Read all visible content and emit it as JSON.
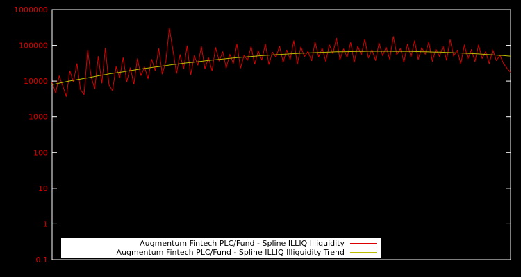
{
  "page": {
    "background_color": "#000000",
    "border_color": "#ffffff"
  },
  "chart_data": {
    "type": "line",
    "title": "",
    "xlabel": "",
    "ylabel": "",
    "x_axis": {
      "tick_labels_visible": false
    },
    "y_axis": {
      "scale": "log",
      "min": 0.1,
      "max": 1000000,
      "tick_labels": [
        "1000000",
        "100000",
        "10000",
        "1000",
        "100",
        "10",
        "1",
        "0.1"
      ],
      "tick_values": [
        1000000,
        100000,
        10000,
        1000,
        100,
        10,
        1,
        0.1
      ],
      "tick_color": "#dd0000"
    },
    "legend": {
      "position": "bottom-center",
      "background": "#ffffff"
    },
    "series": [
      {
        "name": "Augmentum Fintech PLC/Fund - Spline ILLIQ Illiquidity",
        "color": "#dd0000",
        "line_width": 1,
        "values": [
          9500,
          4600,
          14000,
          7400,
          3700,
          19200,
          9500,
          30700,
          5700,
          4200,
          74000,
          12900,
          6100,
          49000,
          8800,
          84000,
          7900,
          5400,
          25500,
          12300,
          45500,
          9500,
          23600,
          8200,
          42200,
          14200,
          24800,
          11700,
          40900,
          19800,
          81600,
          15800,
          35400,
          309000,
          72400,
          16400,
          55200,
          22100,
          97100,
          15000,
          51200,
          28000,
          93500,
          22100,
          45400,
          19400,
          87300,
          36500,
          66500,
          23400,
          56400,
          31000,
          109000,
          23100,
          51700,
          38400,
          92800,
          29900,
          70900,
          38700,
          110000,
          29300,
          64900,
          46600,
          94600,
          33900,
          74400,
          40600,
          135000,
          29800,
          90600,
          48800,
          67700,
          37300,
          125000,
          47400,
          83000,
          35400,
          104000,
          59000,
          159000,
          39800,
          80000,
          46800,
          121000,
          33700,
          94800,
          54400,
          150000,
          44500,
          75700,
          37800,
          117000,
          51500,
          89100,
          41100,
          178000,
          54700,
          82000,
          34100,
          109000,
          47500,
          135000,
          40200,
          86600,
          56300,
          125000,
          36000,
          78100,
          48500,
          96500,
          38200,
          145000,
          49900,
          74000,
          30500,
          103000,
          41800,
          76700,
          35000,
          104000,
          42700,
          67200,
          30400,
          76000,
          37500,
          52600,
          31100,
          22900,
          17500
        ]
      },
      {
        "name": "Augmentum Fintech PLC/Fund - Spline ILLIQ Illiquidity Trend",
        "color": "#bdbd00",
        "line_width": 1,
        "values": [
          7900,
          8340,
          8780,
          9220,
          9660,
          10100,
          10540,
          10980,
          11420,
          11860,
          12300,
          12890,
          13480,
          14070,
          14660,
          15250,
          15840,
          16430,
          17020,
          17610,
          18200,
          18930,
          19660,
          20390,
          21120,
          21850,
          22580,
          23310,
          24040,
          24770,
          25500,
          26360,
          27220,
          28080,
          28940,
          29800,
          30660,
          31520,
          32380,
          33240,
          34100,
          35030,
          35960,
          36890,
          37820,
          38750,
          39680,
          40610,
          41540,
          42470,
          43400,
          44310,
          45220,
          46130,
          47040,
          47950,
          48860,
          49770,
          50680,
          51590,
          52500,
          53290,
          54080,
          54870,
          55660,
          56450,
          57240,
          58030,
          58820,
          59610,
          60400,
          60970,
          61540,
          62110,
          62680,
          63250,
          63820,
          64390,
          64960,
          65530,
          66100,
          66370,
          66640,
          66910,
          67180,
          67450,
          67720,
          67990,
          68260,
          68530,
          68800,
          68740,
          68680,
          68620,
          68560,
          68500,
          68440,
          68380,
          68320,
          68260,
          68200,
          67810,
          67420,
          67030,
          66640,
          66250,
          65860,
          65470,
          65080,
          64690,
          64300,
          63640,
          62980,
          62320,
          61660,
          61000,
          60340,
          59680,
          59020,
          58360,
          57700,
          56900,
          56000,
          55200,
          54300,
          53500,
          52600,
          51800,
          50900,
          50100
        ]
      }
    ]
  }
}
